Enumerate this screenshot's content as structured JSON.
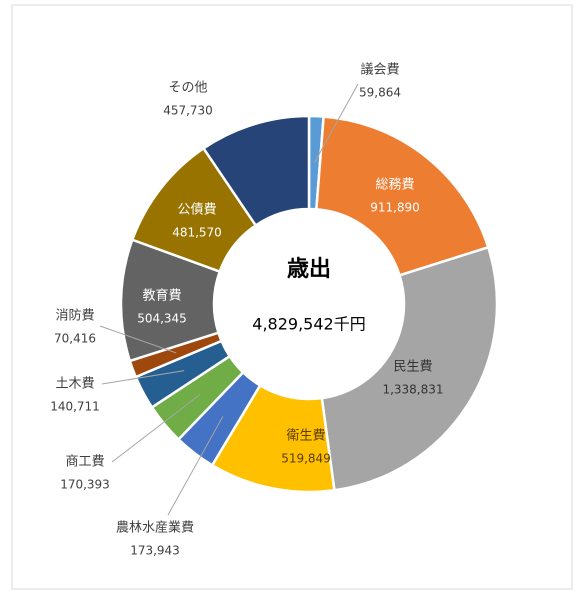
{
  "chart_data": {
    "type": "donut",
    "center_title": "歳出",
    "total": {
      "value": 4829542,
      "label": "4,829,542千円"
    },
    "categories": [
      "議会費",
      "総務費",
      "民生費",
      "衛生費",
      "農林水産業費",
      "商工費",
      "土木費",
      "消防費",
      "教育費",
      "公債費",
      "その他"
    ],
    "values": [
      59864,
      911890,
      1338831,
      519849,
      173943,
      170393,
      140711,
      70416,
      504345,
      481570,
      457730
    ],
    "value_labels": [
      "59,864",
      "911,890",
      "1,338,831",
      "519,849",
      "173,943",
      "170,393",
      "140,711",
      "70,416",
      "504,345",
      "481,570",
      "457,730"
    ],
    "colors": [
      "#5b9bd5",
      "#ed7d31",
      "#a5a5a5",
      "#ffc000",
      "#4472c4",
      "#70ad47",
      "#255e91",
      "#9e480e",
      "#636363",
      "#997300",
      "#264478"
    ]
  }
}
